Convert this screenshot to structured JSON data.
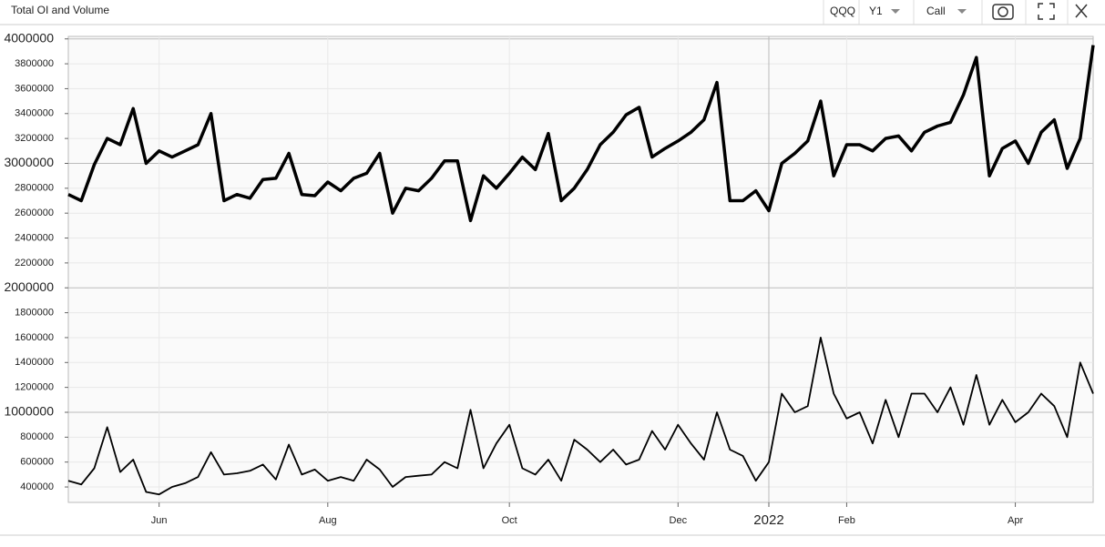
{
  "toolbar": {
    "symbol": "QQQ",
    "expiry": "Y1",
    "option_type": "Call"
  },
  "chart_data": {
    "type": "line",
    "title": "Total OI and Volume",
    "categories": [
      null,
      null,
      null,
      null,
      null,
      null,
      null,
      "Jun",
      null,
      null,
      null,
      null,
      null,
      null,
      null,
      null,
      null,
      null,
      null,
      null,
      "Aug",
      null,
      null,
      null,
      null,
      null,
      null,
      null,
      null,
      null,
      null,
      null,
      null,
      null,
      "Oct",
      null,
      null,
      null,
      null,
      null,
      null,
      null,
      null,
      null,
      null,
      null,
      null,
      "Dec",
      null,
      null,
      null,
      null,
      null,
      null,
      "2022",
      null,
      null,
      null,
      null,
      null,
      "Feb",
      null,
      null,
      null,
      null,
      null,
      null,
      null,
      null,
      null,
      null,
      null,
      null,
      "Apr",
      null,
      null,
      null,
      null,
      null,
      null
    ],
    "series": [
      {
        "color": "#000000",
        "values": [
          2750000,
          2700000,
          2990000,
          3200000,
          3150000,
          3440000,
          3000000,
          3100000,
          3050000,
          3100000,
          3150000,
          3400000,
          2700000,
          2750000,
          2720000,
          2870000,
          2880000,
          3080000,
          2750000,
          2740000,
          2850000,
          2780000,
          2880000,
          2920000,
          3080000,
          2600000,
          2800000,
          2780000,
          2880000,
          3020000,
          3020000,
          2540000,
          2900000,
          2800000,
          2920000,
          3050000,
          2950000,
          3240000,
          2700000,
          2800000,
          2950000,
          3150000,
          3250000,
          3390000,
          3450000,
          3050000,
          3120000,
          3180000,
          3250000,
          3350000,
          3650000,
          2700000,
          2700000,
          2780000,
          2620000,
          3000000,
          3080000,
          3180000,
          3500000,
          2900000,
          3150000,
          3150000,
          3100000,
          3200000,
          3220000,
          3100000,
          3250000,
          3300000,
          3330000,
          3550000,
          3850000,
          2900000,
          3120000,
          3180000,
          3000000,
          3250000,
          3350000,
          2960000,
          3200000,
          3950000
        ]
      },
      {
        "color": "#000000",
        "values": [
          450000,
          420000,
          550000,
          880000,
          520000,
          620000,
          360000,
          340000,
          400000,
          430000,
          480000,
          680000,
          500000,
          510000,
          530000,
          580000,
          460000,
          740000,
          500000,
          540000,
          450000,
          480000,
          450000,
          620000,
          540000,
          400000,
          480000,
          490000,
          500000,
          600000,
          550000,
          1020000,
          550000,
          750000,
          900000,
          550000,
          500000,
          620000,
          450000,
          780000,
          700000,
          600000,
          700000,
          580000,
          620000,
          850000,
          700000,
          900000,
          750000,
          620000,
          1000000,
          700000,
          650000,
          450000,
          600000,
          1150000,
          1000000,
          1050000,
          1600000,
          1150000,
          950000,
          1000000,
          750000,
          1100000,
          800000,
          1150000,
          1150000,
          1000000,
          1200000,
          900000,
          1300000,
          900000,
          1100000,
          920000,
          1000000,
          1150000,
          1050000,
          800000,
          1400000,
          1150000
        ]
      }
    ],
    "ylim": [
      276000,
      4020000
    ],
    "yticks": [
      400000,
      600000,
      800000,
      1000000,
      1200000,
      1400000,
      1600000,
      1800000,
      2000000,
      2200000,
      2400000,
      2600000,
      2800000,
      3000000,
      3200000,
      3400000,
      3600000,
      3800000,
      4000000
    ],
    "grid": true
  }
}
